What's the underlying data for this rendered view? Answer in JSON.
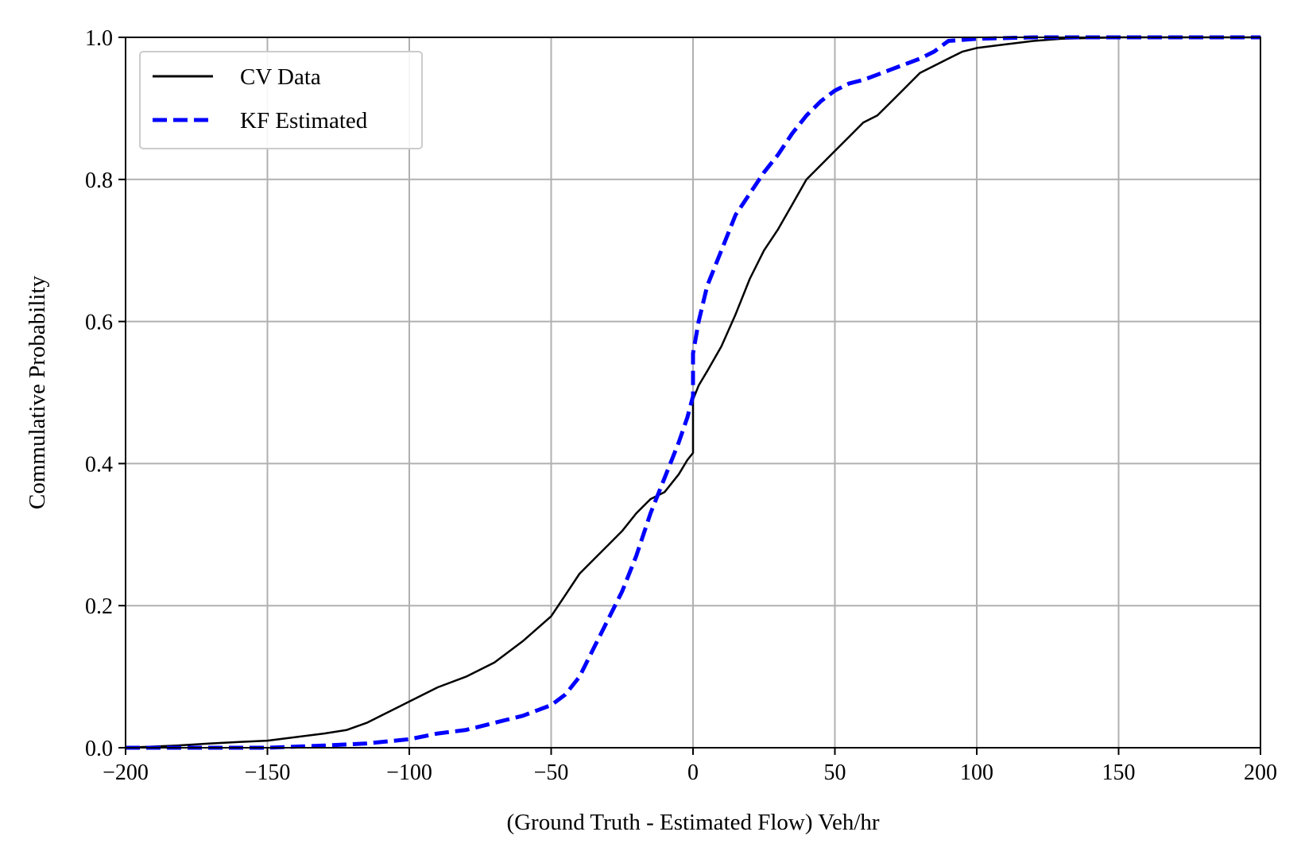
{
  "chart_data": {
    "type": "line",
    "title": "",
    "xlabel": "(Ground Truth - Estimated Flow) Veh/hr",
    "ylabel": "Commulative Probability",
    "xlim": [
      -200,
      200
    ],
    "ylim": [
      0,
      1.0
    ],
    "xticks": [
      -200,
      -150,
      -100,
      -50,
      0,
      50,
      100,
      150,
      200
    ],
    "xtick_labels": [
      "−200",
      "−150",
      "−100",
      "−50",
      "0",
      "50",
      "100",
      "150",
      "200"
    ],
    "yticks": [
      0,
      0.2,
      0.4,
      0.6,
      0.8,
      1.0
    ],
    "ytick_labels": [
      "0.0",
      "0.2",
      "0.4",
      "0.6",
      "0.8",
      "1.0"
    ],
    "grid": true,
    "legend_position": "top-left",
    "series": [
      {
        "name": "CV Data",
        "color": "#000000",
        "style": "solid",
        "x": [
          -200,
          -182,
          -170,
          -160,
          -150,
          -140,
          -130,
          -122,
          -115,
          -110,
          -100,
          -90,
          -80,
          -70,
          -60,
          -50,
          -45,
          -40,
          -35,
          -30,
          -25,
          -20,
          -15,
          -10,
          -5,
          -2,
          0,
          0,
          2,
          5,
          10,
          15,
          20,
          25,
          30,
          35,
          40,
          45,
          50,
          55,
          60,
          65,
          70,
          75,
          80,
          85,
          90,
          95,
          100,
          110,
          120,
          130,
          150,
          200
        ],
        "y": [
          0.0,
          0.003,
          0.006,
          0.008,
          0.01,
          0.015,
          0.02,
          0.025,
          0.035,
          0.045,
          0.065,
          0.085,
          0.1,
          0.12,
          0.15,
          0.185,
          0.215,
          0.245,
          0.265,
          0.285,
          0.305,
          0.33,
          0.35,
          0.36,
          0.385,
          0.405,
          0.415,
          0.49,
          0.51,
          0.53,
          0.565,
          0.61,
          0.66,
          0.7,
          0.73,
          0.765,
          0.8,
          0.82,
          0.84,
          0.86,
          0.88,
          0.89,
          0.91,
          0.93,
          0.95,
          0.96,
          0.97,
          0.98,
          0.985,
          0.99,
          0.995,
          0.998,
          1.0,
          1.0
        ]
      },
      {
        "name": "KF Estimated",
        "color": "#0000ff",
        "style": "dashed",
        "x": [
          -200,
          -150,
          -130,
          -115,
          -100,
          -90,
          -80,
          -70,
          -60,
          -50,
          -45,
          -40,
          -35,
          -30,
          -25,
          -20,
          -15,
          -10,
          -5,
          -2,
          0,
          0,
          2,
          5,
          10,
          15,
          20,
          25,
          30,
          35,
          40,
          45,
          50,
          55,
          60,
          70,
          80,
          85,
          90,
          100,
          120,
          150,
          200
        ],
        "y": [
          0.0,
          0.0,
          0.003,
          0.006,
          0.012,
          0.02,
          0.025,
          0.035,
          0.045,
          0.06,
          0.075,
          0.1,
          0.14,
          0.18,
          0.22,
          0.27,
          0.33,
          0.38,
          0.43,
          0.465,
          0.495,
          0.555,
          0.6,
          0.65,
          0.7,
          0.75,
          0.78,
          0.81,
          0.835,
          0.865,
          0.89,
          0.91,
          0.925,
          0.935,
          0.94,
          0.955,
          0.97,
          0.98,
          0.995,
          0.998,
          1.0,
          1.0,
          1.0
        ]
      }
    ]
  }
}
